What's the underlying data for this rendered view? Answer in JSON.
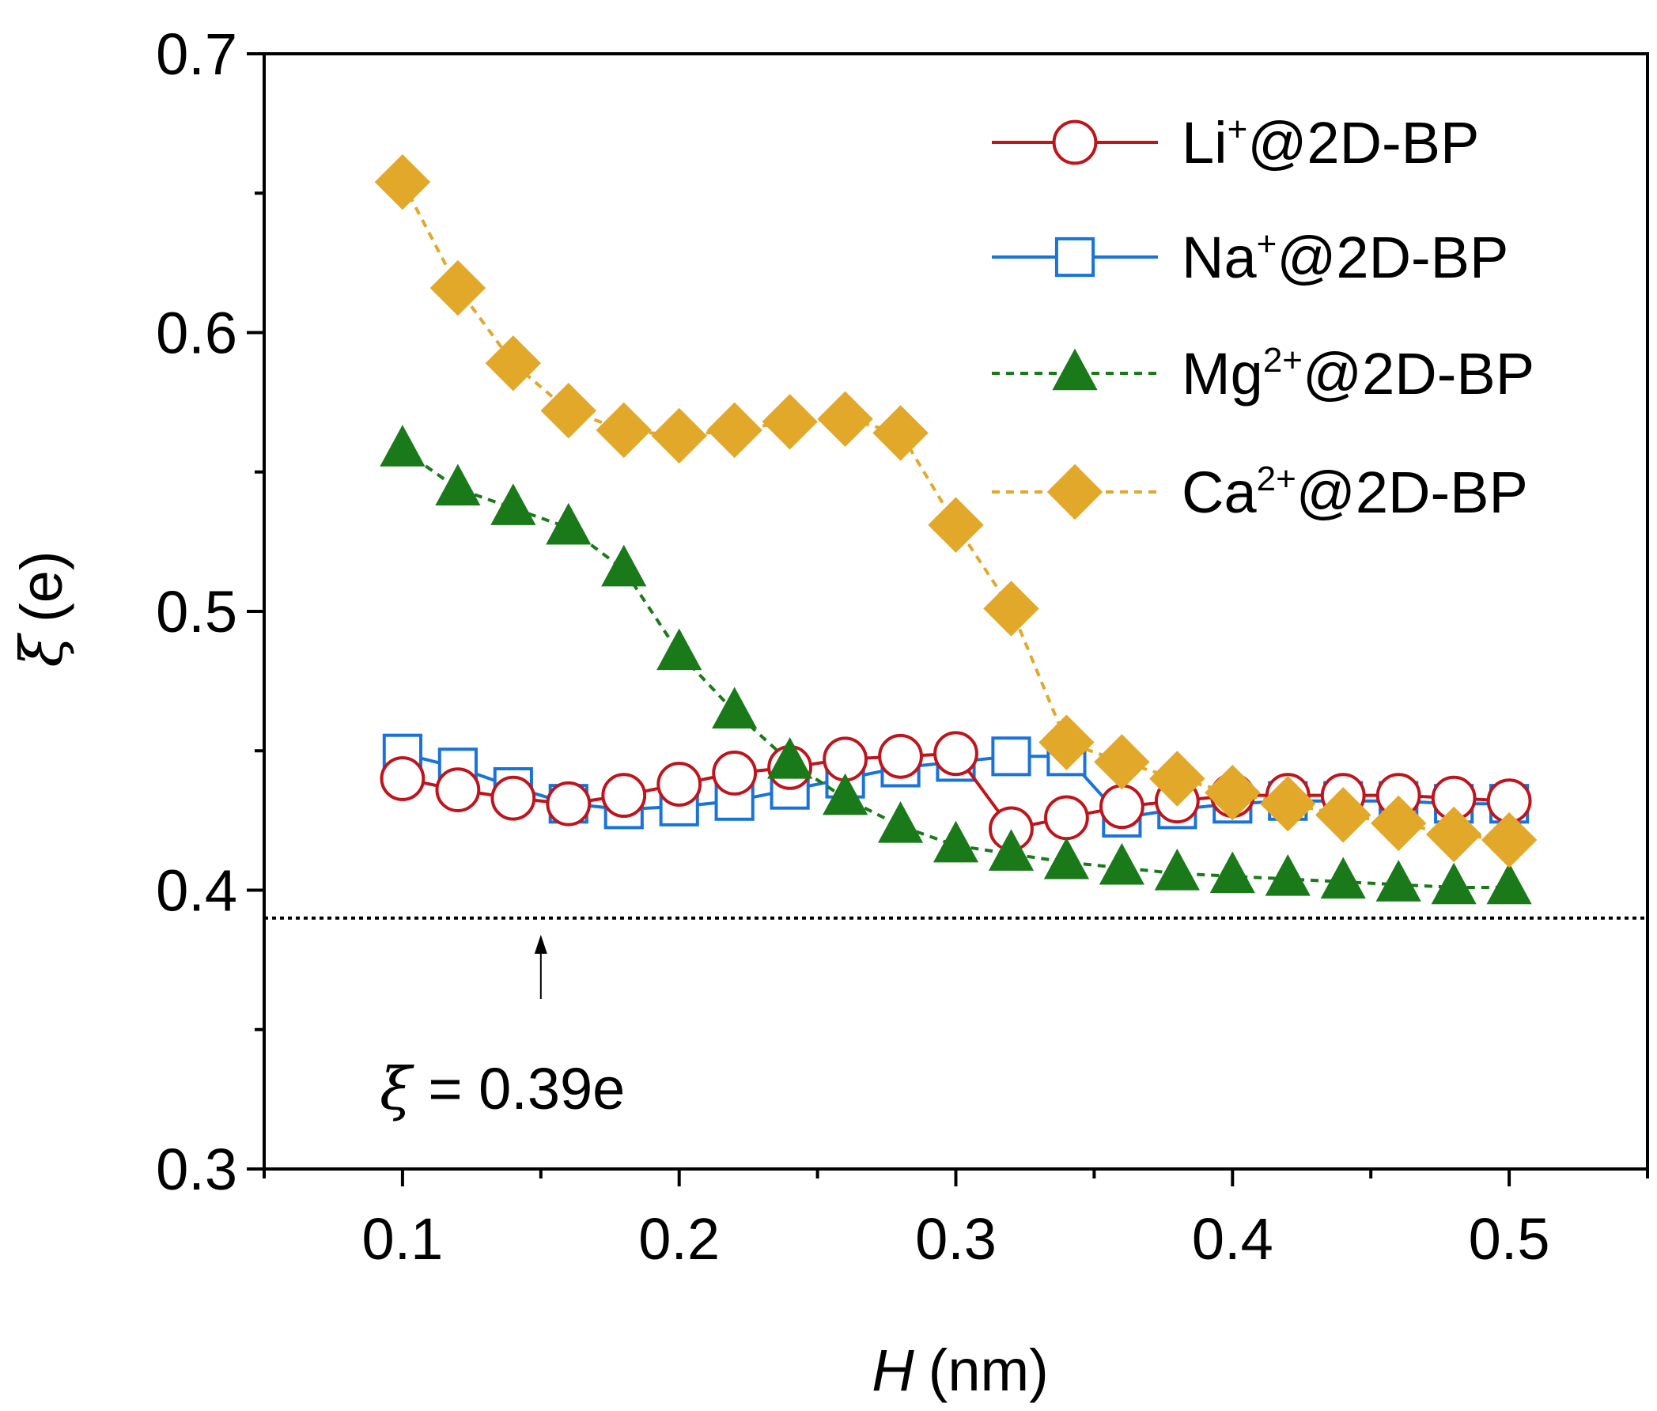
{
  "chart_data": {
    "type": "line",
    "xlabel_var": "H",
    "xlabel_unit": "(nm)",
    "ylabel_var": "ξ",
    "ylabel_unit": "(e)",
    "xlim": [
      0.05,
      0.55
    ],
    "ylim": [
      0.3,
      0.7
    ],
    "x_ticks": [
      0.1,
      0.2,
      0.3,
      0.4,
      0.5
    ],
    "x_tick_labels": [
      "0.1",
      "0.2",
      "0.3",
      "0.4",
      "0.5"
    ],
    "y_ticks": [
      0.3,
      0.4,
      0.5,
      0.6,
      0.7
    ],
    "y_tick_labels": [
      "0.3",
      "0.4",
      "0.5",
      "0.6",
      "0.7"
    ],
    "x": [
      0.1,
      0.12,
      0.14,
      0.16,
      0.18,
      0.2,
      0.22,
      0.24,
      0.26,
      0.28,
      0.3,
      0.32,
      0.34,
      0.36,
      0.38,
      0.4,
      0.42,
      0.44,
      0.46,
      0.48,
      0.5
    ],
    "series": [
      {
        "name_base": "Li",
        "name_sup": "+",
        "name_rest": "@2D-BP",
        "color": "#c0141c",
        "marker": "open-circle",
        "line": "solid",
        "values": [
          0.44,
          0.436,
          0.433,
          0.431,
          0.434,
          0.438,
          0.442,
          0.444,
          0.447,
          0.448,
          0.449,
          0.422,
          0.426,
          0.43,
          0.432,
          0.434,
          0.434,
          0.434,
          0.434,
          0.433,
          0.432
        ]
      },
      {
        "name_base": "Na",
        "name_sup": "+",
        "name_rest": "@2D-BP",
        "color": "#1a73d9",
        "marker": "open-square",
        "line": "solid",
        "values": [
          0.449,
          0.444,
          0.437,
          0.431,
          0.429,
          0.43,
          0.432,
          0.436,
          0.44,
          0.444,
          0.446,
          0.448,
          0.448,
          0.426,
          0.429,
          0.431,
          0.432,
          0.432,
          0.432,
          0.431,
          0.431
        ]
      },
      {
        "name_base": "Mg",
        "name_sup": "2+",
        "name_rest": "@2D-BP",
        "color": "#1a7a1a",
        "marker": "filled-triangle",
        "line": "dashed",
        "values": [
          0.558,
          0.544,
          0.537,
          0.53,
          0.515,
          0.485,
          0.464,
          0.446,
          0.433,
          0.423,
          0.416,
          0.413,
          0.41,
          0.408,
          0.406,
          0.405,
          0.404,
          0.403,
          0.402,
          0.401,
          0.401
        ]
      },
      {
        "name_base": "Ca",
        "name_sup": "2+",
        "name_rest": "@2D-BP",
        "color": "#e2a82a",
        "marker": "filled-diamond",
        "line": "dashed",
        "values": [
          0.654,
          0.616,
          0.589,
          0.572,
          0.565,
          0.563,
          0.565,
          0.568,
          0.569,
          0.564,
          0.531,
          0.501,
          0.453,
          0.446,
          0.44,
          0.435,
          0.431,
          0.427,
          0.424,
          0.42,
          0.418
        ]
      }
    ],
    "reference_line": {
      "value": 0.39,
      "style": "dotted"
    },
    "annotation": {
      "symbol": "ξ",
      "text": " = 0.39e",
      "arrow_x": 0.15,
      "arrow_from": 0.361,
      "arrow_to": 0.384
    },
    "legend_position": "top-right",
    "grid": false
  }
}
